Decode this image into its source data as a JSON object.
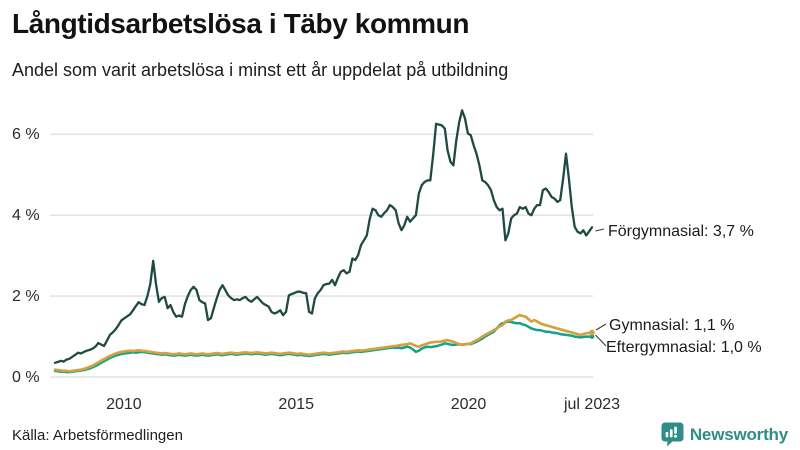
{
  "header": {
    "title": "Långtidsarbetslösa i Täby kommun",
    "subtitle": "Andel som varit arbetslösa i minst ett år uppdelat på utbildning"
  },
  "source": "Källa: Arbetsförmedlingen",
  "branding": {
    "name": "Newsworthy"
  },
  "colors": {
    "forgymnasial": "#1f4a42",
    "gymnasial": "#d4a142",
    "eftergymnasial": "#14a28b",
    "grid": "#e4e4e8",
    "connector": "#3c3c3c",
    "brand_teal": "#2e8d85"
  },
  "chart_data": {
    "type": "line",
    "title": "Långtidsarbetslösa i Täby kommun",
    "subtitle": "Andel som varit arbetslösa i minst ett år uppdelat på utbildning",
    "unit": "%",
    "x_start": 2008.0,
    "x_end": 2023.5833,
    "x_ticks": [
      {
        "label": "2010",
        "t": 2010
      },
      {
        "label": "2015",
        "t": 2015
      },
      {
        "label": "2020",
        "t": 2020
      },
      {
        "label": "jul 2023",
        "t": 2023.5833
      }
    ],
    "y_ticks": [
      {
        "label": "0 %",
        "value": 0
      },
      {
        "label": "2 %",
        "value": 2
      },
      {
        "label": "4 %",
        "value": 4
      },
      {
        "label": "6 %",
        "value": 6
      }
    ],
    "ylim": [
      0,
      6.8
    ],
    "grid": true,
    "legend_position": "right-annotations",
    "series": [
      {
        "name": "Förgymnasial",
        "label": "Förgymnasial: 3,7 %",
        "end_value": "3,7 %",
        "color": "#1f4a42",
        "values": [
          0.35,
          0.37,
          0.4,
          0.38,
          0.43,
          0.45,
          0.5,
          0.55,
          0.6,
          0.58,
          0.62,
          0.65,
          0.67,
          0.7,
          0.75,
          0.84,
          0.8,
          0.77,
          0.9,
          1.04,
          1.1,
          1.18,
          1.28,
          1.4,
          1.45,
          1.5,
          1.55,
          1.65,
          1.75,
          1.85,
          1.8,
          1.78,
          2.0,
          2.3,
          2.87,
          2.3,
          1.86,
          1.95,
          1.98,
          1.7,
          1.78,
          1.6,
          1.49,
          1.52,
          1.49,
          1.8,
          2.0,
          2.15,
          2.23,
          2.15,
          1.9,
          1.85,
          1.82,
          1.41,
          1.45,
          1.7,
          1.94,
          2.15,
          2.27,
          2.15,
          2.02,
          1.95,
          1.9,
          1.92,
          1.9,
          1.95,
          1.98,
          1.9,
          1.86,
          1.92,
          1.98,
          1.9,
          1.82,
          1.78,
          1.74,
          1.61,
          1.57,
          1.6,
          1.65,
          1.53,
          1.61,
          2.02,
          2.05,
          2.08,
          2.11,
          2.11,
          2.08,
          2.07,
          1.61,
          1.57,
          1.94,
          2.07,
          2.15,
          2.27,
          2.3,
          2.31,
          2.4,
          2.27,
          2.45,
          2.6,
          2.64,
          2.56,
          2.6,
          2.93,
          2.89,
          3.01,
          3.26,
          3.38,
          3.5,
          3.9,
          4.16,
          4.12,
          4.0,
          3.96,
          4.05,
          4.12,
          4.25,
          4.2,
          4.12,
          3.8,
          3.63,
          3.75,
          3.96,
          3.84,
          3.92,
          4.0,
          4.53,
          4.74,
          4.82,
          4.86,
          4.86,
          5.5,
          6.26,
          6.24,
          6.22,
          6.14,
          5.6,
          5.32,
          5.23,
          5.85,
          6.3,
          6.59,
          6.39,
          6.02,
          5.98,
          5.73,
          5.52,
          5.23,
          4.86,
          4.82,
          4.74,
          4.62,
          4.37,
          4.2,
          4.12,
          4.16,
          3.38,
          3.55,
          3.92,
          4.0,
          4.04,
          4.2,
          4.16,
          4.2,
          4.04,
          4.0,
          4.16,
          4.25,
          4.25,
          4.62,
          4.66,
          4.57,
          4.45,
          4.41,
          4.33,
          4.37,
          4.9,
          5.52,
          4.9,
          4.2,
          3.71,
          3.59,
          3.55,
          3.63,
          3.5,
          3.6,
          3.7
        ]
      },
      {
        "name": "Gymnasial",
        "label": "Gymnasial: 1,1 %",
        "end_value": "1,1 %",
        "color": "#d4a142",
        "values": [
          0.18,
          0.17,
          0.16,
          0.15,
          0.15,
          0.14,
          0.15,
          0.16,
          0.17,
          0.18,
          0.2,
          0.22,
          0.25,
          0.28,
          0.32,
          0.36,
          0.4,
          0.44,
          0.48,
          0.52,
          0.55,
          0.58,
          0.6,
          0.62,
          0.63,
          0.64,
          0.65,
          0.64,
          0.65,
          0.66,
          0.65,
          0.64,
          0.63,
          0.62,
          0.61,
          0.6,
          0.59,
          0.58,
          0.59,
          0.58,
          0.57,
          0.56,
          0.57,
          0.58,
          0.57,
          0.56,
          0.57,
          0.58,
          0.57,
          0.56,
          0.57,
          0.58,
          0.57,
          0.56,
          0.57,
          0.58,
          0.59,
          0.58,
          0.57,
          0.58,
          0.59,
          0.6,
          0.59,
          0.58,
          0.59,
          0.6,
          0.61,
          0.6,
          0.59,
          0.6,
          0.61,
          0.6,
          0.59,
          0.58,
          0.59,
          0.6,
          0.59,
          0.58,
          0.57,
          0.58,
          0.59,
          0.6,
          0.59,
          0.58,
          0.57,
          0.58,
          0.57,
          0.56,
          0.55,
          0.56,
          0.57,
          0.58,
          0.59,
          0.6,
          0.59,
          0.58,
          0.59,
          0.6,
          0.61,
          0.62,
          0.63,
          0.62,
          0.63,
          0.64,
          0.65,
          0.66,
          0.65,
          0.66,
          0.67,
          0.68,
          0.69,
          0.7,
          0.71,
          0.72,
          0.73,
          0.74,
          0.75,
          0.76,
          0.77,
          0.78,
          0.79,
          0.8,
          0.81,
          0.83,
          0.8,
          0.77,
          0.75,
          0.78,
          0.8,
          0.83,
          0.85,
          0.86,
          0.87,
          0.87,
          0.88,
          0.9,
          0.91,
          0.89,
          0.87,
          0.84,
          0.81,
          0.79,
          0.8,
          0.82,
          0.83,
          0.87,
          0.91,
          0.95,
          1.0,
          1.04,
          1.08,
          1.12,
          1.16,
          1.2,
          1.25,
          1.28,
          1.37,
          1.4,
          1.41,
          1.45,
          1.49,
          1.53,
          1.51,
          1.49,
          1.43,
          1.37,
          1.41,
          1.37,
          1.33,
          1.3,
          1.28,
          1.26,
          1.24,
          1.22,
          1.2,
          1.18,
          1.16,
          1.14,
          1.12,
          1.1,
          1.08,
          1.06,
          1.04,
          1.06,
          1.08,
          1.09,
          1.1
        ]
      },
      {
        "name": "Eftergymnasial",
        "label": "Eftergymnasial: 1,0 %",
        "end_value": "1,0 %",
        "color": "#14a28b",
        "values": [
          0.15,
          0.14,
          0.13,
          0.13,
          0.12,
          0.12,
          0.13,
          0.14,
          0.15,
          0.16,
          0.17,
          0.19,
          0.21,
          0.24,
          0.27,
          0.31,
          0.35,
          0.39,
          0.43,
          0.47,
          0.5,
          0.53,
          0.55,
          0.57,
          0.58,
          0.59,
          0.6,
          0.61,
          0.6,
          0.61,
          0.62,
          0.61,
          0.6,
          0.59,
          0.58,
          0.57,
          0.56,
          0.55,
          0.56,
          0.55,
          0.54,
          0.53,
          0.54,
          0.55,
          0.54,
          0.53,
          0.54,
          0.55,
          0.54,
          0.53,
          0.54,
          0.55,
          0.54,
          0.53,
          0.54,
          0.55,
          0.56,
          0.55,
          0.54,
          0.55,
          0.56,
          0.57,
          0.56,
          0.55,
          0.56,
          0.57,
          0.58,
          0.57,
          0.56,
          0.57,
          0.58,
          0.57,
          0.56,
          0.55,
          0.56,
          0.57,
          0.56,
          0.55,
          0.54,
          0.55,
          0.56,
          0.57,
          0.56,
          0.55,
          0.54,
          0.55,
          0.54,
          0.53,
          0.52,
          0.53,
          0.54,
          0.55,
          0.56,
          0.57,
          0.56,
          0.55,
          0.56,
          0.57,
          0.58,
          0.59,
          0.6,
          0.59,
          0.6,
          0.61,
          0.62,
          0.63,
          0.62,
          0.63,
          0.64,
          0.65,
          0.66,
          0.67,
          0.68,
          0.69,
          0.7,
          0.71,
          0.72,
          0.73,
          0.72,
          0.73,
          0.71,
          0.73,
          0.75,
          0.73,
          0.68,
          0.62,
          0.65,
          0.7,
          0.73,
          0.75,
          0.74,
          0.75,
          0.76,
          0.78,
          0.8,
          0.83,
          0.82,
          0.8,
          0.79,
          0.8,
          0.81,
          0.8,
          0.81,
          0.82,
          0.81,
          0.84,
          0.87,
          0.91,
          0.95,
          1.0,
          1.04,
          1.08,
          1.12,
          1.2,
          1.28,
          1.33,
          1.35,
          1.37,
          1.36,
          1.34,
          1.33,
          1.33,
          1.3,
          1.28,
          1.24,
          1.2,
          1.18,
          1.16,
          1.16,
          1.14,
          1.12,
          1.12,
          1.1,
          1.09,
          1.08,
          1.06,
          1.05,
          1.04,
          1.03,
          1.02,
          1.0,
          0.99,
          0.98,
          0.99,
          1.0,
          1.0,
          1.0
        ]
      }
    ]
  }
}
